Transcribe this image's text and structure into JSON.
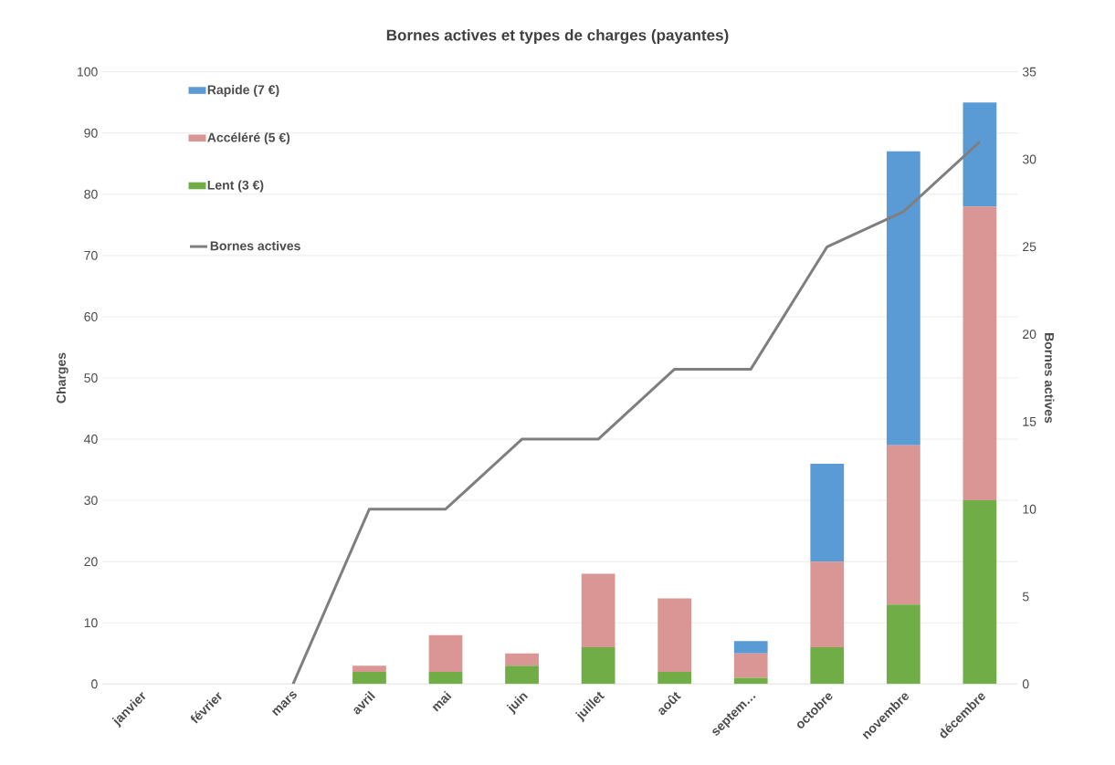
{
  "chart_data": {
    "type": "bar",
    "title": "Bornes actives et types de charges (payantes)",
    "ylabel": "Charges",
    "y2label": "Bornes actives",
    "categories": [
      "janvier",
      "février",
      "mars",
      "avril",
      "mai",
      "juin",
      "juillet",
      "août",
      "septem…",
      "octobre",
      "novembre",
      "décembre"
    ],
    "stacked": true,
    "series": [
      {
        "name": "Lent (3 €)",
        "color": "#70ad47",
        "values": [
          0,
          0,
          0,
          2,
          2,
          3,
          6,
          2,
          1,
          6,
          13,
          30
        ]
      },
      {
        "name": "Accéléré (5 €)",
        "color": "#d99694",
        "values": [
          0,
          0,
          0,
          1,
          6,
          2,
          12,
          12,
          4,
          14,
          26,
          48
        ]
      },
      {
        "name": "Rapide (7 €)",
        "color": "#5b9bd5",
        "values": [
          0,
          0,
          0,
          0,
          0,
          0,
          0,
          0,
          2,
          16,
          48,
          17
        ]
      },
      {
        "name": "Bornes actives",
        "type": "line",
        "axis": "y2",
        "color": "#7f7f7f",
        "values": [
          null,
          null,
          0,
          10,
          10,
          14,
          14,
          18,
          18,
          25,
          27,
          31
        ]
      }
    ],
    "ylim": [
      0,
      100
    ],
    "yticks": [
      0,
      10,
      20,
      30,
      40,
      50,
      60,
      70,
      80,
      90,
      100
    ],
    "y2lim": [
      0,
      35
    ],
    "y2ticks": [
      0,
      5,
      10,
      15,
      20,
      25,
      30,
      35
    ],
    "grid": "y",
    "legend": "top left"
  }
}
